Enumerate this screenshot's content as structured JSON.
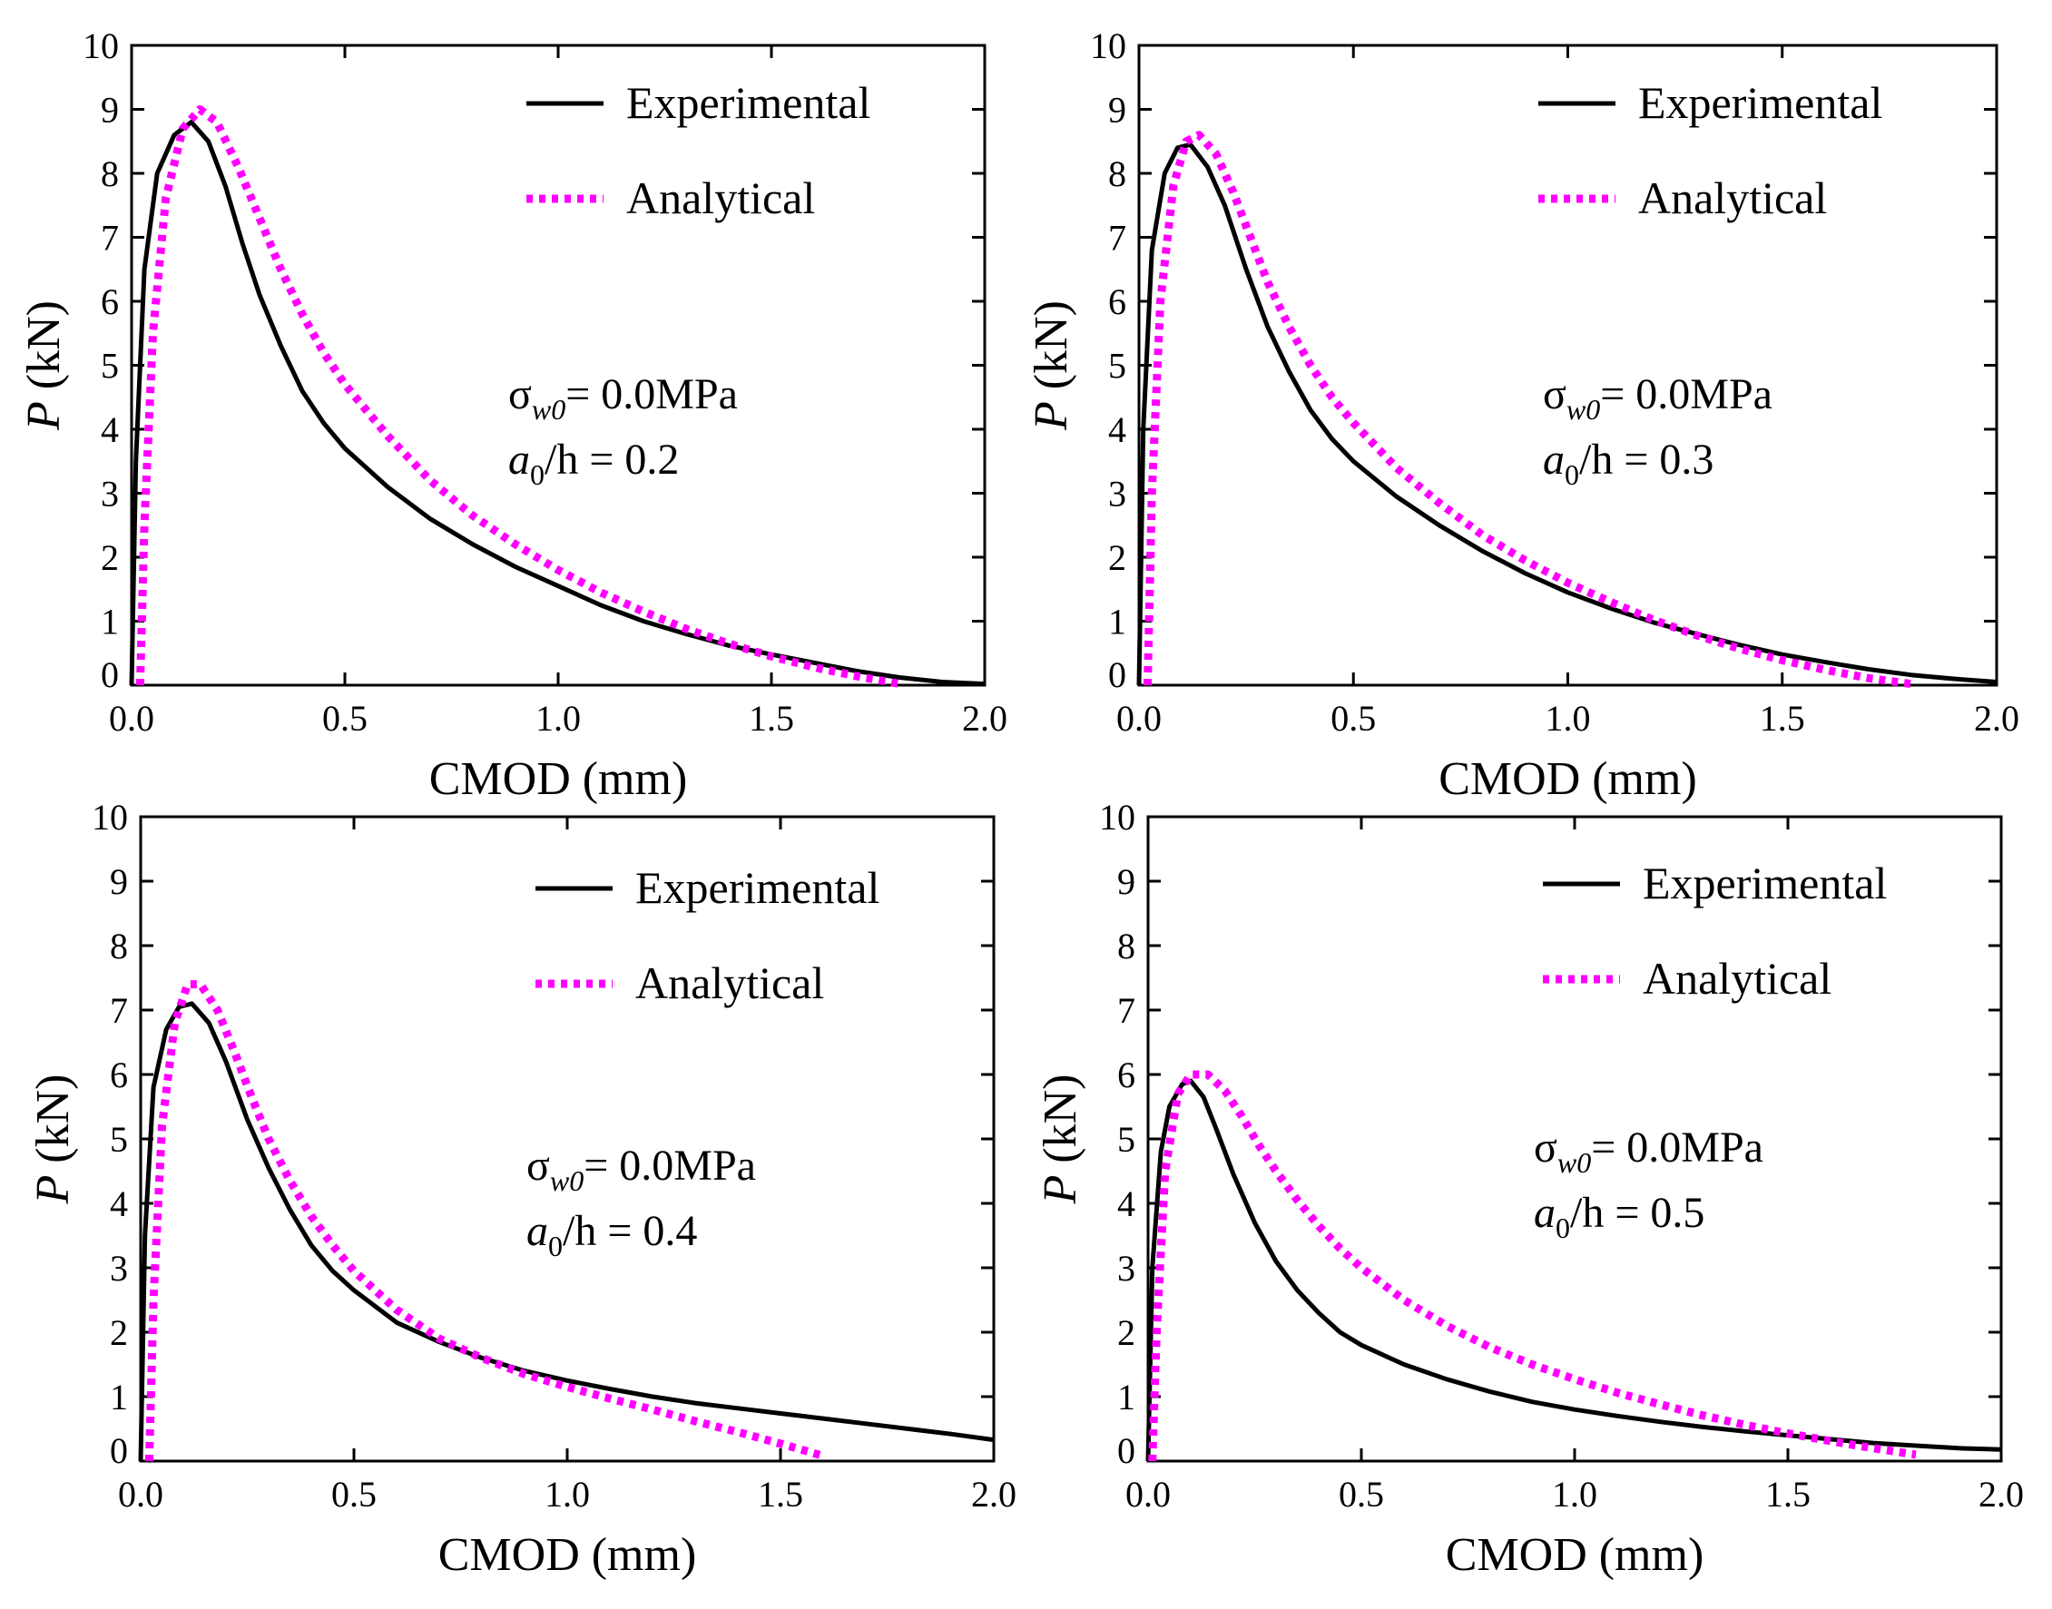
{
  "colors": {
    "experimental": "#000000",
    "analytical": "#ff00ff",
    "axis": "#000000",
    "background": "#ffffff"
  },
  "chart_data": [
    {
      "type": "line",
      "xlabel": "CMOD (mm)",
      "ylabel_var": "P",
      "ylabel_unit": " (kN)",
      "xlim": [
        0,
        2.0
      ],
      "ylim": [
        0,
        10
      ],
      "xticks": [
        "0.0",
        "0.5",
        "1.0",
        "1.5",
        "2.0"
      ],
      "yticks": [
        "0",
        "1",
        "2",
        "3",
        "4",
        "5",
        "6",
        "7",
        "8",
        "9",
        "10"
      ],
      "grid": false,
      "legend_position": "top-right",
      "annotation": {
        "sigma_symbol": "σ",
        "sigma_sub": "w0",
        "sigma_value": "= 0.0MPa",
        "a_symbol": "a",
        "a_sub": "0",
        "a_value": "/h = 0.2"
      },
      "series": [
        {
          "name": "Experimental",
          "style": "solid",
          "x": [
            0,
            0.01,
            0.03,
            0.06,
            0.1,
            0.14,
            0.18,
            0.22,
            0.26,
            0.3,
            0.35,
            0.4,
            0.45,
            0.5,
            0.6,
            0.7,
            0.8,
            0.9,
            1.0,
            1.1,
            1.2,
            1.3,
            1.4,
            1.5,
            1.6,
            1.7,
            1.8,
            1.9,
            2.0
          ],
          "y": [
            0,
            3.5,
            6.5,
            8.0,
            8.6,
            8.8,
            8.5,
            7.8,
            6.9,
            6.1,
            5.3,
            4.6,
            4.1,
            3.7,
            3.1,
            2.6,
            2.2,
            1.85,
            1.55,
            1.25,
            1.0,
            0.8,
            0.62,
            0.48,
            0.35,
            0.22,
            0.12,
            0.05,
            0.02
          ]
        },
        {
          "name": "Analytical",
          "style": "dotted",
          "x": [
            0.02,
            0.03,
            0.05,
            0.08,
            0.12,
            0.16,
            0.2,
            0.25,
            0.3,
            0.35,
            0.4,
            0.45,
            0.5,
            0.6,
            0.7,
            0.8,
            0.9,
            1.0,
            1.1,
            1.2,
            1.3,
            1.4,
            1.5,
            1.6,
            1.7,
            1.8
          ],
          "y": [
            0,
            2.5,
            5.5,
            7.6,
            8.7,
            9.0,
            8.8,
            8.1,
            7.3,
            6.5,
            5.8,
            5.2,
            4.7,
            3.9,
            3.2,
            2.65,
            2.2,
            1.8,
            1.45,
            1.15,
            0.88,
            0.65,
            0.45,
            0.28,
            0.14,
            0.02
          ]
        }
      ]
    },
    {
      "type": "line",
      "xlabel": "CMOD (mm)",
      "ylabel_var": "P",
      "ylabel_unit": " (kN)",
      "xlim": [
        0,
        2.0
      ],
      "ylim": [
        0,
        10
      ],
      "xticks": [
        "0.0",
        "0.5",
        "1.0",
        "1.5",
        "2.0"
      ],
      "yticks": [
        "0",
        "1",
        "2",
        "3",
        "4",
        "5",
        "6",
        "7",
        "8",
        "9",
        "10"
      ],
      "grid": false,
      "legend_position": "top-right",
      "annotation": {
        "sigma_symbol": "σ",
        "sigma_sub": "w0",
        "sigma_value": "= 0.0MPa",
        "a_symbol": "a",
        "a_sub": "0",
        "a_value": "/h = 0.3"
      },
      "series": [
        {
          "name": "Experimental",
          "style": "solid",
          "x": [
            0,
            0.01,
            0.03,
            0.06,
            0.09,
            0.12,
            0.16,
            0.2,
            0.25,
            0.3,
            0.35,
            0.4,
            0.45,
            0.5,
            0.6,
            0.7,
            0.8,
            0.9,
            1.0,
            1.1,
            1.2,
            1.3,
            1.4,
            1.5,
            1.6,
            1.7,
            1.8,
            1.9,
            2.0
          ],
          "y": [
            0,
            4.0,
            6.8,
            8.0,
            8.4,
            8.45,
            8.1,
            7.5,
            6.5,
            5.6,
            4.9,
            4.3,
            3.85,
            3.5,
            2.95,
            2.5,
            2.1,
            1.75,
            1.45,
            1.2,
            0.98,
            0.8,
            0.63,
            0.48,
            0.36,
            0.25,
            0.16,
            0.1,
            0.05
          ]
        },
        {
          "name": "Analytical",
          "style": "dotted",
          "x": [
            0.02,
            0.03,
            0.05,
            0.08,
            0.11,
            0.14,
            0.18,
            0.22,
            0.26,
            0.3,
            0.35,
            0.4,
            0.45,
            0.5,
            0.6,
            0.7,
            0.8,
            0.9,
            1.0,
            1.1,
            1.2,
            1.3,
            1.4,
            1.5,
            1.6,
            1.7,
            1.8
          ],
          "y": [
            0,
            3.0,
            6.0,
            7.8,
            8.5,
            8.6,
            8.3,
            7.7,
            7.0,
            6.3,
            5.6,
            5.0,
            4.5,
            4.1,
            3.4,
            2.85,
            2.35,
            1.95,
            1.6,
            1.3,
            1.02,
            0.78,
            0.57,
            0.39,
            0.24,
            0.11,
            0.02
          ]
        }
      ]
    },
    {
      "type": "line",
      "xlabel": "CMOD (mm)",
      "ylabel_var": "P",
      "ylabel_unit": " (kN)",
      "xlim": [
        0,
        2.0
      ],
      "ylim": [
        0,
        10
      ],
      "xticks": [
        "0.0",
        "0.5",
        "1.0",
        "1.5",
        "2.0"
      ],
      "yticks": [
        "0",
        "1",
        "2",
        "3",
        "4",
        "5",
        "6",
        "7",
        "8",
        "9",
        "10"
      ],
      "grid": false,
      "legend_position": "top-right",
      "annotation": {
        "sigma_symbol": "σ",
        "sigma_sub": "w0",
        "sigma_value": "= 0.0MPa",
        "a_symbol": "a",
        "a_sub": "0",
        "a_value": "/h = 0.4"
      },
      "series": [
        {
          "name": "Experimental",
          "style": "solid",
          "x": [
            0,
            0.01,
            0.03,
            0.06,
            0.09,
            0.12,
            0.16,
            0.2,
            0.25,
            0.3,
            0.35,
            0.4,
            0.45,
            0.5,
            0.6,
            0.7,
            0.8,
            0.9,
            1.0,
            1.1,
            1.2,
            1.3,
            1.4,
            1.5,
            1.6,
            1.7,
            1.8,
            1.9,
            2.0
          ],
          "y": [
            0,
            3.5,
            5.8,
            6.7,
            7.05,
            7.1,
            6.8,
            6.2,
            5.3,
            4.55,
            3.9,
            3.35,
            2.95,
            2.65,
            2.15,
            1.85,
            1.6,
            1.4,
            1.25,
            1.12,
            1.0,
            0.9,
            0.82,
            0.74,
            0.66,
            0.58,
            0.5,
            0.42,
            0.33
          ]
        },
        {
          "name": "Analytical",
          "style": "dotted",
          "x": [
            0.02,
            0.03,
            0.05,
            0.08,
            0.11,
            0.14,
            0.18,
            0.22,
            0.26,
            0.3,
            0.35,
            0.4,
            0.45,
            0.5,
            0.6,
            0.7,
            0.8,
            0.9,
            1.0,
            1.1,
            1.2,
            1.3,
            1.4,
            1.5,
            1.6
          ],
          "y": [
            0,
            2.5,
            5.2,
            6.8,
            7.4,
            7.4,
            7.0,
            6.35,
            5.65,
            5.0,
            4.35,
            3.8,
            3.35,
            2.95,
            2.35,
            1.9,
            1.6,
            1.35,
            1.15,
            0.97,
            0.8,
            0.62,
            0.45,
            0.27,
            0.08
          ]
        }
      ]
    },
    {
      "type": "line",
      "xlabel": "CMOD (mm)",
      "ylabel_var": "P",
      "ylabel_unit": " (kN)",
      "xlim": [
        0,
        2.0
      ],
      "ylim": [
        0,
        10
      ],
      "xticks": [
        "0.0",
        "0.5",
        "1.0",
        "1.5",
        "2.0"
      ],
      "yticks": [
        "0",
        "1",
        "2",
        "3",
        "4",
        "5",
        "6",
        "7",
        "8",
        "9",
        "10"
      ],
      "grid": false,
      "legend_position": "top-right",
      "annotation": {
        "sigma_symbol": "σ",
        "sigma_sub": "w0",
        "sigma_value": "= 0.0MPa",
        "a_symbol": "a",
        "a_sub": "0",
        "a_value": "/h = 0.5"
      },
      "series": [
        {
          "name": "Experimental",
          "style": "solid",
          "x": [
            0,
            0.01,
            0.03,
            0.05,
            0.08,
            0.1,
            0.13,
            0.16,
            0.2,
            0.25,
            0.3,
            0.35,
            0.4,
            0.45,
            0.5,
            0.6,
            0.7,
            0.8,
            0.9,
            1.0,
            1.1,
            1.2,
            1.3,
            1.4,
            1.5,
            1.6,
            1.7,
            1.8,
            1.9,
            2.0
          ],
          "y": [
            0,
            3.0,
            4.8,
            5.5,
            5.85,
            5.9,
            5.65,
            5.15,
            4.45,
            3.7,
            3.1,
            2.65,
            2.3,
            2.0,
            1.8,
            1.5,
            1.27,
            1.08,
            0.92,
            0.8,
            0.7,
            0.61,
            0.53,
            0.46,
            0.4,
            0.34,
            0.28,
            0.24,
            0.2,
            0.18
          ]
        },
        {
          "name": "Analytical",
          "style": "dotted",
          "x": [
            0.01,
            0.02,
            0.04,
            0.07,
            0.1,
            0.14,
            0.18,
            0.22,
            0.26,
            0.3,
            0.35,
            0.4,
            0.45,
            0.5,
            0.6,
            0.7,
            0.8,
            0.9,
            1.0,
            1.1,
            1.2,
            1.3,
            1.4,
            1.5,
            1.6,
            1.7,
            1.8
          ],
          "y": [
            0,
            2.0,
            4.5,
            5.7,
            6.0,
            6.0,
            5.75,
            5.35,
            4.9,
            4.5,
            4.05,
            3.65,
            3.3,
            3.0,
            2.5,
            2.1,
            1.77,
            1.5,
            1.27,
            1.06,
            0.88,
            0.71,
            0.56,
            0.43,
            0.31,
            0.2,
            0.1
          ]
        }
      ]
    }
  ]
}
